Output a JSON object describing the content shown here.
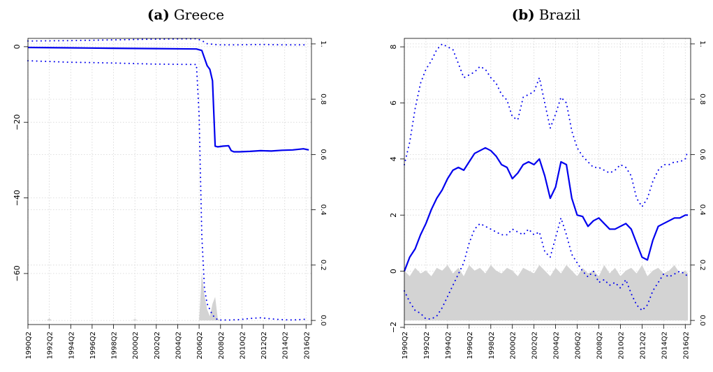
{
  "chart_data": [
    {
      "type": "line",
      "title_label": "(a)",
      "title_text": "Greece",
      "x_ticks": [
        "1990Q2",
        "1992Q2",
        "1994Q2",
        "1996Q2",
        "1998Q2",
        "2000Q2",
        "2002Q2",
        "2004Q2",
        "2006Q2",
        "2008Q2",
        "2010Q2",
        "2012Q2",
        "2014Q2",
        "2016Q2"
      ],
      "xlim": [
        1990.25,
        2016.75
      ],
      "y_ticks": [
        0,
        -20,
        -40,
        -60
      ],
      "ylim": [
        -73.5,
        2.2
      ],
      "y2_ticks": [
        0.0,
        0.2,
        0.4,
        0.6,
        0.8,
        1.0
      ],
      "y2_tick_labels": [
        "0.0",
        "0.2",
        "0.4",
        "0.6",
        "0.8",
        "1."
      ],
      "y2lim": [
        -0.015,
        1.02
      ],
      "grid": true,
      "series": [
        {
          "style": "upper-band-dotted",
          "x": [
            1990.25,
            1994,
            1998,
            2002,
            2006,
            2006.5,
            2007,
            2008,
            2010,
            2012,
            2014,
            2016.25
          ],
          "y": [
            1.5,
            1.6,
            1.8,
            2.0,
            2.1,
            1.6,
            0.8,
            0.5,
            0.5,
            0.6,
            0.5,
            0.5
          ]
        },
        {
          "style": "estimate-solid",
          "x": [
            1990.25,
            1994,
            1998,
            2002,
            2006,
            2006.5,
            2006.75,
            2007,
            2007.25,
            2007.5,
            2007.75,
            2008,
            2008.5,
            2009,
            2009.25,
            2009.5,
            2010,
            2011,
            2012,
            2013,
            2014,
            2015,
            2016,
            2016.5
          ],
          "y": [
            -0.2,
            -0.3,
            -0.4,
            -0.5,
            -0.6,
            -1.0,
            -3.0,
            -5.0,
            -6.0,
            -9.0,
            -26.3,
            -26.5,
            -26.3,
            -26.2,
            -27.5,
            -27.8,
            -27.8,
            -27.7,
            -27.5,
            -27.6,
            -27.4,
            -27.3,
            -27.0,
            -27.3
          ]
        },
        {
          "style": "lower-band-dotted",
          "x": [
            1990.25,
            1994,
            1998,
            2002,
            2006,
            2006.25,
            2006.5,
            2006.75,
            2007,
            2007.5,
            2008,
            2009,
            2010,
            2011,
            2012,
            2013,
            2014,
            2015,
            2016.25
          ],
          "y": [
            -3.7,
            -4.1,
            -4.3,
            -4.6,
            -4.7,
            -18,
            -50,
            -64,
            -68,
            -71,
            -72.3,
            -72.3,
            -72.2,
            -71.9,
            -71.7,
            -72.0,
            -72.2,
            -72.3,
            -72.1
          ]
        }
      ],
      "shaded_probability": {
        "x": [
          1990.25,
          1992,
          1992.25,
          1992.5,
          1994,
          1996,
          1998,
          2000,
          2000.25,
          2000.5,
          2002,
          2004,
          2006,
          2006.25,
          2006.5,
          2006.75,
          2007,
          2007.25,
          2007.5,
          2007.75,
          2008,
          2008.25,
          2008.5,
          2009,
          2010,
          2012,
          2014,
          2016.5
        ],
        "y": [
          0.0,
          0.0,
          0.007,
          0.0,
          0.0,
          0.0,
          0.0,
          0.0,
          0.005,
          0.0,
          0.0,
          0.0,
          0.0,
          0.0,
          0.17,
          0.09,
          0.04,
          0.015,
          0.06,
          0.085,
          0.005,
          0.0,
          0.0,
          0.0,
          0.0,
          0.0,
          0.0,
          0.0
        ]
      }
    },
    {
      "type": "line",
      "title_label": "(b)",
      "title_text": "Brazil",
      "x_ticks": [
        "1990Q2",
        "1992Q2",
        "1994Q2",
        "1996Q2",
        "1998Q2",
        "2000Q2",
        "2002Q2",
        "2004Q2",
        "2006Q2",
        "2008Q2",
        "2010Q2",
        "2012Q2",
        "2014Q2",
        "2016Q2"
      ],
      "xlim": [
        1990.25,
        2016.75
      ],
      "y_ticks": [
        8,
        6,
        4,
        2,
        0,
        -2
      ],
      "ylim": [
        -1.9,
        8.3
      ],
      "y2_ticks": [
        0.0,
        0.2,
        0.4,
        0.6,
        0.8,
        1.0
      ],
      "y2_tick_labels": [
        "0.0",
        "0.2",
        "0.4",
        "0.6",
        "0.8",
        "1."
      ],
      "y2lim": [
        -0.015,
        1.02
      ],
      "grid": true,
      "series": [
        {
          "style": "upper-band-dotted",
          "x": [
            1990.25,
            1990.75,
            1991.25,
            1991.75,
            1992.25,
            1992.75,
            1993.25,
            1993.75,
            1994.25,
            1994.75,
            1995.25,
            1995.75,
            1996.25,
            1996.75,
            1997.25,
            1997.75,
            1998.25,
            1998.75,
            1999.25,
            1999.75,
            2000.25,
            2000.75,
            2001.25,
            2001.75,
            2002.25,
            2002.75,
            2003.25,
            2003.75,
            2004.25,
            2004.75,
            2005.25,
            2005.75,
            2006.25,
            2006.75,
            2007.25,
            2007.75,
            2008.25,
            2008.75,
            2009.25,
            2009.75,
            2010.25,
            2010.75,
            2011.25,
            2011.75,
            2012.25,
            2012.75,
            2013.25,
            2013.75,
            2014.25,
            2014.75,
            2015.25,
            2015.75,
            2016.25,
            2016.5
          ],
          "y": [
            3.8,
            4.6,
            5.8,
            6.7,
            7.2,
            7.5,
            7.9,
            8.1,
            8.0,
            7.9,
            7.4,
            6.9,
            7.0,
            7.1,
            7.3,
            7.2,
            6.9,
            6.7,
            6.3,
            6.1,
            5.5,
            5.4,
            6.2,
            6.3,
            6.4,
            6.9,
            6.0,
            5.1,
            5.6,
            6.2,
            6.0,
            5.0,
            4.4,
            4.1,
            3.9,
            3.7,
            3.7,
            3.6,
            3.5,
            3.6,
            3.8,
            3.7,
            3.4,
            2.6,
            2.3,
            2.6,
            3.2,
            3.6,
            3.8,
            3.8,
            3.9,
            3.9,
            4.0,
            4.3
          ]
        },
        {
          "style": "estimate-solid",
          "x": [
            1990.25,
            1990.75,
            1991.25,
            1991.75,
            1992.25,
            1992.75,
            1993.25,
            1993.75,
            1994.25,
            1994.75,
            1995.25,
            1995.75,
            1996.25,
            1996.75,
            1997.25,
            1997.75,
            1998.25,
            1998.75,
            1999.25,
            1999.75,
            2000.25,
            2000.75,
            2001.25,
            2001.75,
            2002.25,
            2002.75,
            2003.25,
            2003.75,
            2004.25,
            2004.75,
            2005.25,
            2005.75,
            2006.25,
            2006.75,
            2007.25,
            2007.75,
            2008.25,
            2008.75,
            2009.25,
            2009.75,
            2010.25,
            2010.75,
            2011.25,
            2011.75,
            2012.25,
            2012.75,
            2013.25,
            2013.75,
            2014.25,
            2014.75,
            2015.25,
            2015.75,
            2016.25,
            2016.5
          ],
          "y": [
            0.0,
            0.5,
            0.8,
            1.3,
            1.7,
            2.2,
            2.6,
            2.9,
            3.3,
            3.6,
            3.7,
            3.6,
            3.9,
            4.2,
            4.3,
            4.4,
            4.3,
            4.1,
            3.8,
            3.7,
            3.3,
            3.5,
            3.8,
            3.9,
            3.8,
            4.0,
            3.4,
            2.6,
            3.0,
            3.9,
            3.8,
            2.6,
            2.0,
            1.95,
            1.6,
            1.8,
            1.9,
            1.7,
            1.5,
            1.5,
            1.6,
            1.7,
            1.5,
            1.0,
            0.5,
            0.4,
            1.1,
            1.6,
            1.7,
            1.8,
            1.9,
            1.9,
            2.0,
            2.0
          ]
        },
        {
          "style": "lower-band-dotted",
          "x": [
            1990.25,
            1990.75,
            1991.25,
            1991.75,
            1992.25,
            1992.75,
            1993.25,
            1993.75,
            1994.25,
            1994.75,
            1995.25,
            1995.75,
            1996.25,
            1996.75,
            1997.25,
            1997.75,
            1998.25,
            1998.75,
            1999.25,
            1999.75,
            2000.25,
            2000.75,
            2001.25,
            2001.75,
            2002.25,
            2002.75,
            2003.25,
            2003.75,
            2004.25,
            2004.75,
            2005.25,
            2005.75,
            2006.25,
            2006.75,
            2007.25,
            2007.75,
            2008.25,
            2008.75,
            2009.25,
            2009.75,
            2010.25,
            2010.75,
            2011.25,
            2011.75,
            2012.25,
            2012.75,
            2013.25,
            2013.75,
            2014.25,
            2014.75,
            2015.25,
            2015.75,
            2016.25,
            2016.5
          ],
          "y": [
            -0.7,
            -1.1,
            -1.4,
            -1.5,
            -1.7,
            -1.7,
            -1.6,
            -1.3,
            -0.9,
            -0.5,
            -0.1,
            0.3,
            1.0,
            1.5,
            1.7,
            1.6,
            1.5,
            1.4,
            1.3,
            1.3,
            1.5,
            1.4,
            1.3,
            1.5,
            1.3,
            1.4,
            0.7,
            0.5,
            1.2,
            1.9,
            1.3,
            0.6,
            0.3,
            0.0,
            -0.2,
            0.0,
            -0.4,
            -0.3,
            -0.5,
            -0.4,
            -0.6,
            -0.3,
            -0.8,
            -1.2,
            -1.4,
            -1.2,
            -0.7,
            -0.4,
            -0.1,
            -0.2,
            -0.1,
            0.0,
            -0.1,
            -0.2
          ]
        }
      ],
      "shaded_probability": {
        "x": [
          1990.25,
          1990.75,
          1991.25,
          1991.75,
          1992.25,
          1992.75,
          1993.25,
          1993.75,
          1994.25,
          1994.75,
          1995.25,
          1995.75,
          1996.25,
          1996.75,
          1997.25,
          1997.75,
          1998.25,
          1998.75,
          1999.25,
          1999.75,
          2000.25,
          2000.75,
          2001.25,
          2001.75,
          2002.25,
          2002.75,
          2003.25,
          2003.75,
          2004.25,
          2004.75,
          2005.25,
          2005.75,
          2006.25,
          2006.75,
          2007.25,
          2007.75,
          2008.25,
          2008.75,
          2009.25,
          2009.75,
          2010.25,
          2010.75,
          2011.25,
          2011.75,
          2012.25,
          2012.75,
          2013.25,
          2013.75,
          2014.25,
          2014.75,
          2015.25,
          2015.75,
          2016.25,
          2016.5
        ],
        "y": [
          0.18,
          0.16,
          0.19,
          0.17,
          0.18,
          0.16,
          0.19,
          0.18,
          0.2,
          0.17,
          0.19,
          0.16,
          0.2,
          0.18,
          0.19,
          0.17,
          0.2,
          0.18,
          0.17,
          0.19,
          0.18,
          0.16,
          0.19,
          0.18,
          0.17,
          0.2,
          0.18,
          0.16,
          0.19,
          0.17,
          0.2,
          0.18,
          0.16,
          0.19,
          0.17,
          0.18,
          0.16,
          0.2,
          0.17,
          0.19,
          0.16,
          0.18,
          0.19,
          0.17,
          0.2,
          0.16,
          0.18,
          0.19,
          0.17,
          0.18,
          0.2,
          0.17,
          0.18,
          0.17
        ]
      }
    }
  ]
}
